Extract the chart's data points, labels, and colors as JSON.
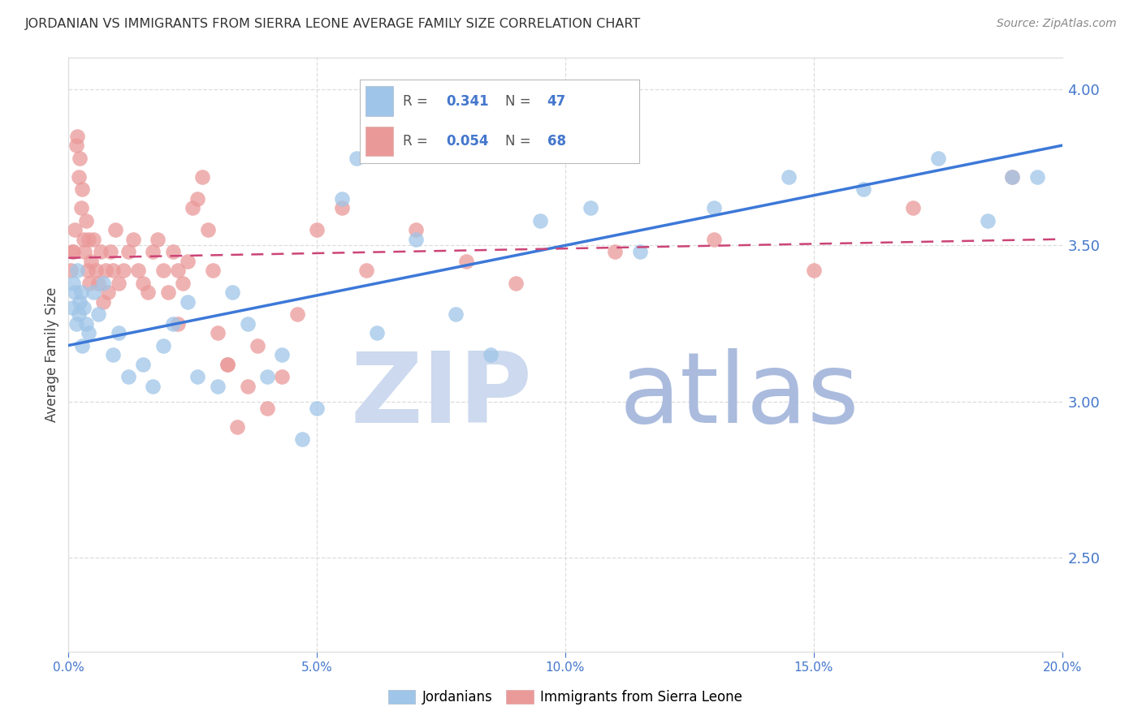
{
  "title": "JORDANIAN VS IMMIGRANTS FROM SIERRA LEONE AVERAGE FAMILY SIZE CORRELATION CHART",
  "source": "Source: ZipAtlas.com",
  "ylabel": "Average Family Size",
  "xmin": 0.0,
  "xmax": 20.0,
  "ymin": 2.2,
  "ymax": 4.1,
  "yticks": [
    2.5,
    3.0,
    3.5,
    4.0
  ],
  "xticks": [
    0.0,
    5.0,
    10.0,
    15.0,
    20.0
  ],
  "blue_color": "#9fc5e8",
  "pink_color": "#ea9999",
  "blue_line_color": "#3c78d8",
  "pink_line_color": "#cc4477",
  "watermark_zip_color": "#ccd9ee",
  "watermark_atlas_color": "#aabbdd",
  "R_blue": 0.341,
  "N_blue": 47,
  "R_pink": 0.054,
  "N_pink": 68,
  "blue_line_x0": 0,
  "blue_line_y0": 3.18,
  "blue_line_x1": 20,
  "blue_line_y1": 3.82,
  "pink_line_x0": 0,
  "pink_line_y0": 3.46,
  "pink_line_x1": 20,
  "pink_line_y1": 3.52,
  "blue_x": [
    0.08,
    0.1,
    0.12,
    0.15,
    0.18,
    0.2,
    0.22,
    0.25,
    0.28,
    0.3,
    0.35,
    0.4,
    0.5,
    0.6,
    0.7,
    0.9,
    1.0,
    1.2,
    1.5,
    1.7,
    1.9,
    2.1,
    2.4,
    2.6,
    3.0,
    3.3,
    3.6,
    4.0,
    4.3,
    4.7,
    5.0,
    5.5,
    6.2,
    7.0,
    7.8,
    8.5,
    9.5,
    10.5,
    11.5,
    13.0,
    14.5,
    16.0,
    17.5,
    18.5,
    19.0,
    19.5,
    5.8
  ],
  "blue_y": [
    3.3,
    3.38,
    3.35,
    3.25,
    3.42,
    3.28,
    3.32,
    3.35,
    3.18,
    3.3,
    3.25,
    3.22,
    3.35,
    3.28,
    3.38,
    3.15,
    3.22,
    3.08,
    3.12,
    3.05,
    3.18,
    3.25,
    3.32,
    3.08,
    3.05,
    3.35,
    3.25,
    3.08,
    3.15,
    2.88,
    2.98,
    3.65,
    3.22,
    3.52,
    3.28,
    3.15,
    3.58,
    3.62,
    3.48,
    3.62,
    3.72,
    3.68,
    3.78,
    3.58,
    3.72,
    3.72,
    3.78
  ],
  "pink_x": [
    0.05,
    0.08,
    0.1,
    0.12,
    0.15,
    0.18,
    0.2,
    0.22,
    0.25,
    0.28,
    0.3,
    0.32,
    0.35,
    0.38,
    0.4,
    0.42,
    0.45,
    0.5,
    0.55,
    0.6,
    0.65,
    0.7,
    0.75,
    0.8,
    0.85,
    0.9,
    0.95,
    1.0,
    1.1,
    1.2,
    1.3,
    1.4,
    1.5,
    1.6,
    1.7,
    1.8,
    1.9,
    2.0,
    2.1,
    2.2,
    2.3,
    2.4,
    2.5,
    2.6,
    2.7,
    2.8,
    2.9,
    3.0,
    3.2,
    3.4,
    3.6,
    3.8,
    4.0,
    4.3,
    4.6,
    5.0,
    5.5,
    6.0,
    7.0,
    8.0,
    9.0,
    11.0,
    13.0,
    15.0,
    17.0,
    19.0,
    2.2,
    3.2
  ],
  "pink_y": [
    3.42,
    3.48,
    3.48,
    3.55,
    3.82,
    3.85,
    3.72,
    3.78,
    3.62,
    3.68,
    3.52,
    3.48,
    3.58,
    3.42,
    3.52,
    3.38,
    3.45,
    3.52,
    3.42,
    3.38,
    3.48,
    3.32,
    3.42,
    3.35,
    3.48,
    3.42,
    3.55,
    3.38,
    3.42,
    3.48,
    3.52,
    3.42,
    3.38,
    3.35,
    3.48,
    3.52,
    3.42,
    3.35,
    3.48,
    3.42,
    3.38,
    3.45,
    3.62,
    3.65,
    3.72,
    3.55,
    3.42,
    3.22,
    3.12,
    2.92,
    3.05,
    3.18,
    2.98,
    3.08,
    3.28,
    3.55,
    3.62,
    3.42,
    3.55,
    3.45,
    3.38,
    3.48,
    3.52,
    3.42,
    3.62,
    3.72,
    3.25,
    3.12
  ]
}
